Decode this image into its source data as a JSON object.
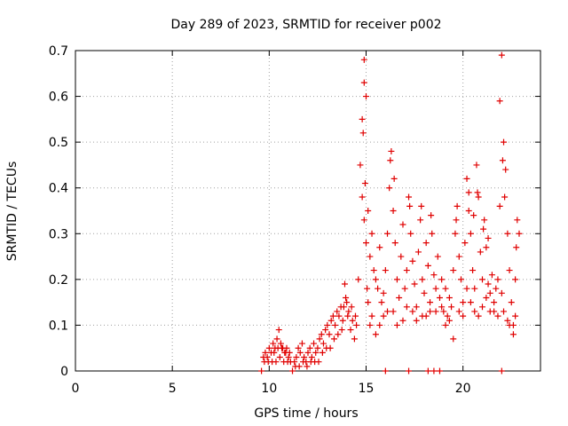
{
  "chart_data": {
    "type": "scatter",
    "title": "Day 289 of 2023, SRMTID for receiver p002",
    "xlabel": "GPS time / hours",
    "ylabel": "SRMTID / TECUs",
    "xlim": [
      0,
      24
    ],
    "ylim": [
      0,
      0.7
    ],
    "xticks": [
      0,
      5,
      10,
      15,
      20
    ],
    "xtick_labels": [
      "0",
      "5",
      "10",
      "15",
      "20"
    ],
    "yticks": [
      0,
      0.1,
      0.2,
      0.3,
      0.4,
      0.5,
      0.6,
      0.7
    ],
    "ytick_labels": [
      "0",
      "0.1",
      "0.2",
      "0.3",
      "0.4",
      "0.5",
      "0.6",
      "0.7"
    ],
    "grid": true,
    "marker": "+",
    "series": [
      {
        "name": "SRMTID",
        "color": "#e00000",
        "points": [
          [
            9.6,
            0.0
          ],
          [
            9.7,
            0.03
          ],
          [
            9.8,
            0.04
          ],
          [
            9.9,
            0.03
          ],
          [
            10.0,
            0.05
          ],
          [
            10.1,
            0.04
          ],
          [
            10.2,
            0.06
          ],
          [
            10.3,
            0.05
          ],
          [
            10.4,
            0.07
          ],
          [
            10.5,
            0.09
          ],
          [
            10.6,
            0.06
          ],
          [
            10.7,
            0.05
          ],
          [
            10.8,
            0.04
          ],
          [
            10.9,
            0.05
          ],
          [
            11.0,
            0.03
          ],
          [
            11.1,
            0.02
          ],
          [
            11.2,
            0.0
          ],
          [
            11.3,
            0.02
          ],
          [
            11.4,
            0.03
          ],
          [
            11.5,
            0.05
          ],
          [
            11.6,
            0.04
          ],
          [
            11.7,
            0.06
          ],
          [
            11.8,
            0.03
          ],
          [
            11.9,
            0.02
          ],
          [
            12.0,
            0.04
          ],
          [
            12.1,
            0.05
          ],
          [
            12.2,
            0.03
          ],
          [
            12.3,
            0.06
          ],
          [
            12.4,
            0.04
          ],
          [
            12.5,
            0.05
          ],
          [
            12.6,
            0.07
          ],
          [
            12.7,
            0.08
          ],
          [
            12.8,
            0.06
          ],
          [
            12.9,
            0.09
          ],
          [
            13.0,
            0.1
          ],
          [
            13.1,
            0.08
          ],
          [
            13.2,
            0.11
          ],
          [
            13.3,
            0.12
          ],
          [
            13.4,
            0.1
          ],
          [
            13.5,
            0.13
          ],
          [
            13.6,
            0.12
          ],
          [
            13.7,
            0.14
          ],
          [
            13.8,
            0.11
          ],
          [
            13.9,
            0.19
          ],
          [
            14.0,
            0.15
          ],
          [
            14.1,
            0.13
          ],
          [
            14.2,
            0.09
          ],
          [
            14.3,
            0.11
          ],
          [
            14.4,
            0.07
          ],
          [
            14.5,
            0.1
          ],
          [
            14.6,
            0.2
          ],
          [
            14.7,
            0.45
          ],
          [
            14.8,
            0.55
          ],
          [
            14.9,
            0.68
          ],
          [
            15.0,
            0.6
          ],
          [
            15.1,
            0.35
          ],
          [
            15.2,
            0.25
          ],
          [
            15.3,
            0.3
          ],
          [
            15.4,
            0.22
          ],
          [
            15.5,
            0.2
          ],
          [
            15.6,
            0.18
          ],
          [
            15.7,
            0.27
          ],
          [
            15.8,
            0.15
          ],
          [
            15.9,
            0.12
          ],
          [
            16.0,
            0.22
          ],
          [
            16.1,
            0.3
          ],
          [
            16.2,
            0.4
          ],
          [
            16.3,
            0.48
          ],
          [
            16.4,
            0.35
          ],
          [
            16.5,
            0.28
          ],
          [
            16.6,
            0.2
          ],
          [
            16.7,
            0.16
          ],
          [
            16.8,
            0.25
          ],
          [
            16.9,
            0.32
          ],
          [
            17.0,
            0.18
          ],
          [
            17.1,
            0.22
          ],
          [
            17.2,
            0.38
          ],
          [
            17.3,
            0.3
          ],
          [
            17.4,
            0.24
          ],
          [
            17.5,
            0.19
          ],
          [
            17.6,
            0.14
          ],
          [
            17.7,
            0.26
          ],
          [
            17.8,
            0.33
          ],
          [
            17.9,
            0.2
          ],
          [
            18.0,
            0.17
          ],
          [
            18.1,
            0.28
          ],
          [
            18.2,
            0.23
          ],
          [
            18.3,
            0.15
          ],
          [
            18.4,
            0.3
          ],
          [
            18.5,
            0.21
          ],
          [
            18.6,
            0.18
          ],
          [
            18.7,
            0.25
          ],
          [
            18.8,
            0.16
          ],
          [
            18.9,
            0.2
          ],
          [
            19.0,
            0.13
          ],
          [
            19.1,
            0.18
          ],
          [
            19.2,
            0.12
          ],
          [
            19.3,
            0.16
          ],
          [
            19.4,
            0.14
          ],
          [
            19.5,
            0.22
          ],
          [
            19.6,
            0.3
          ],
          [
            19.7,
            0.36
          ],
          [
            19.8,
            0.25
          ],
          [
            19.9,
            0.2
          ],
          [
            20.0,
            0.15
          ],
          [
            20.1,
            0.28
          ],
          [
            20.2,
            0.42
          ],
          [
            20.3,
            0.35
          ],
          [
            20.4,
            0.3
          ],
          [
            20.5,
            0.22
          ],
          [
            20.6,
            0.18
          ],
          [
            20.7,
            0.45
          ],
          [
            20.8,
            0.38
          ],
          [
            20.9,
            0.26
          ],
          [
            21.0,
            0.2
          ],
          [
            21.1,
            0.33
          ],
          [
            21.2,
            0.27
          ],
          [
            21.3,
            0.19
          ],
          [
            21.4,
            0.17
          ],
          [
            21.5,
            0.21
          ],
          [
            21.6,
            0.15
          ],
          [
            21.7,
            0.18
          ],
          [
            21.8,
            0.2
          ],
          [
            21.9,
            0.36
          ],
          [
            22.0,
            0.69
          ],
          [
            22.1,
            0.5
          ],
          [
            22.2,
            0.44
          ],
          [
            22.3,
            0.3
          ],
          [
            22.4,
            0.22
          ],
          [
            22.5,
            0.15
          ],
          [
            22.6,
            0.1
          ],
          [
            22.7,
            0.2
          ],
          [
            22.8,
            0.33
          ],
          [
            22.9,
            0.3
          ],
          [
            16.0,
            0.0
          ],
          [
            17.2,
            0.0
          ],
          [
            18.2,
            0.0
          ],
          [
            18.5,
            0.0
          ],
          [
            18.8,
            0.0
          ],
          [
            22.0,
            0.0
          ],
          [
            14.9,
            0.63
          ],
          [
            14.85,
            0.52
          ],
          [
            14.95,
            0.41
          ],
          [
            14.8,
            0.38
          ],
          [
            14.9,
            0.33
          ],
          [
            15.0,
            0.28
          ],
          [
            15.05,
            0.18
          ],
          [
            15.1,
            0.15
          ],
          [
            15.2,
            0.1
          ],
          [
            15.3,
            0.12
          ],
          [
            15.5,
            0.08
          ],
          [
            15.7,
            0.1
          ],
          [
            15.9,
            0.17
          ],
          [
            16.1,
            0.13
          ],
          [
            16.4,
            0.13
          ],
          [
            16.6,
            0.1
          ],
          [
            16.9,
            0.11
          ],
          [
            17.1,
            0.14
          ],
          [
            17.4,
            0.13
          ],
          [
            17.6,
            0.11
          ],
          [
            17.9,
            0.12
          ],
          [
            18.1,
            0.12
          ],
          [
            18.3,
            0.13
          ],
          [
            18.6,
            0.13
          ],
          [
            18.9,
            0.14
          ],
          [
            19.1,
            0.1
          ],
          [
            19.3,
            0.11
          ],
          [
            19.5,
            0.07
          ],
          [
            19.8,
            0.13
          ],
          [
            20.0,
            0.12
          ],
          [
            20.2,
            0.18
          ],
          [
            20.4,
            0.15
          ],
          [
            20.6,
            0.13
          ],
          [
            20.8,
            0.12
          ],
          [
            21.0,
            0.14
          ],
          [
            21.2,
            0.16
          ],
          [
            21.4,
            0.13
          ],
          [
            21.6,
            0.13
          ],
          [
            21.8,
            0.12
          ],
          [
            22.0,
            0.17
          ],
          [
            22.1,
            0.13
          ],
          [
            22.3,
            0.11
          ],
          [
            22.4,
            0.1
          ],
          [
            22.6,
            0.08
          ],
          [
            22.7,
            0.12
          ],
          [
            21.9,
            0.59
          ],
          [
            22.05,
            0.46
          ],
          [
            22.15,
            0.38
          ],
          [
            20.3,
            0.39
          ],
          [
            20.75,
            0.39
          ],
          [
            16.25,
            0.46
          ],
          [
            16.45,
            0.42
          ],
          [
            17.25,
            0.36
          ],
          [
            17.85,
            0.36
          ],
          [
            18.35,
            0.34
          ],
          [
            19.65,
            0.33
          ],
          [
            20.55,
            0.34
          ],
          [
            21.05,
            0.31
          ],
          [
            21.3,
            0.29
          ],
          [
            22.75,
            0.27
          ],
          [
            13.95,
            0.16
          ],
          [
            14.05,
            0.12
          ],
          [
            14.25,
            0.14
          ],
          [
            14.45,
            0.12
          ],
          [
            13.85,
            0.14
          ],
          [
            13.75,
            0.09
          ],
          [
            13.55,
            0.08
          ],
          [
            13.35,
            0.07
          ],
          [
            13.15,
            0.05
          ],
          [
            12.95,
            0.05
          ],
          [
            12.75,
            0.04
          ],
          [
            12.55,
            0.02
          ],
          [
            12.35,
            0.02
          ],
          [
            12.15,
            0.02
          ],
          [
            11.95,
            0.01
          ],
          [
            11.75,
            0.02
          ],
          [
            11.55,
            0.01
          ],
          [
            11.35,
            0.01
          ],
          [
            10.95,
            0.02
          ],
          [
            10.75,
            0.02
          ],
          [
            10.55,
            0.03
          ],
          [
            10.35,
            0.02
          ],
          [
            10.15,
            0.02
          ],
          [
            9.95,
            0.02
          ],
          [
            9.75,
            0.02
          ],
          [
            10.25,
            0.04
          ],
          [
            10.45,
            0.05
          ],
          [
            10.65,
            0.05
          ],
          [
            10.85,
            0.04
          ],
          [
            11.05,
            0.04
          ]
        ]
      }
    ]
  }
}
